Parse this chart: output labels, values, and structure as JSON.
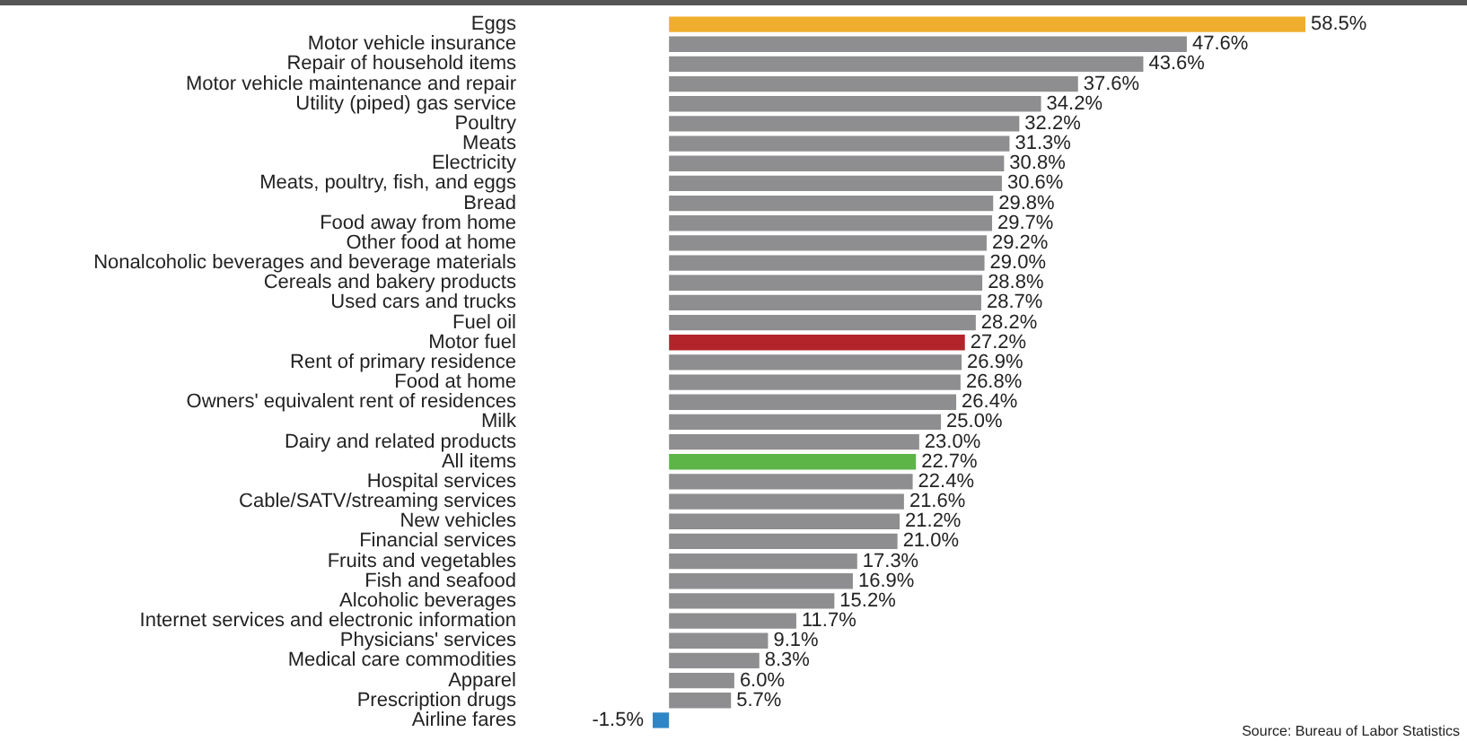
{
  "chart_data": {
    "type": "bar",
    "orientation": "horizontal",
    "categories": [
      "Eggs",
      "Motor vehicle insurance",
      "Repair of household items",
      "Motor vehicle maintenance and repair",
      "Utility (piped) gas service",
      "Poultry",
      "Meats",
      "Electricity",
      "Meats, poultry, fish, and eggs",
      "Bread",
      "Food away from home",
      "Other food at home",
      "Nonalcoholic beverages and beverage materials",
      "Cereals and bakery products",
      "Used cars and trucks",
      "Fuel oil",
      "Motor fuel",
      "Rent of primary residence",
      "Food at home",
      "Owners' equivalent rent of residences",
      "Milk",
      "Dairy and related products",
      "All items",
      "Hospital services",
      "Cable/SATV/streaming services",
      "New vehicles",
      "Financial services",
      "Fruits and vegetables",
      "Fish and seafood",
      "Alcoholic beverages",
      "Internet services and electronic information",
      "Physicians' services",
      "Medical care commodities",
      "Apparel",
      "Prescription drugs",
      "Airline fares"
    ],
    "values": [
      58.5,
      47.6,
      43.6,
      37.6,
      34.2,
      32.2,
      31.3,
      30.8,
      30.6,
      29.8,
      29.7,
      29.2,
      29.0,
      28.8,
      28.7,
      28.2,
      27.2,
      26.9,
      26.8,
      26.4,
      25.0,
      23.0,
      22.7,
      22.4,
      21.6,
      21.2,
      21.0,
      17.3,
      16.9,
      15.2,
      11.7,
      9.1,
      8.3,
      6.0,
      5.7,
      -1.5
    ],
    "value_labels": [
      "58.5%",
      "47.6%",
      "43.6%",
      "37.6%",
      "34.2%",
      "32.2%",
      "31.3%",
      "30.8%",
      "30.6%",
      "29.8%",
      "29.7%",
      "29.2%",
      "29.0%",
      "28.8%",
      "28.7%",
      "28.2%",
      "27.2%",
      "26.9%",
      "26.8%",
      "26.4%",
      "25.0%",
      "23.0%",
      "22.7%",
      "22.4%",
      "21.6%",
      "21.2%",
      "21.0%",
      "17.3%",
      "16.9%",
      "15.2%",
      "11.7%",
      "9.1%",
      "8.3%",
      "6.0%",
      "5.7%",
      "-1.5%"
    ],
    "colors": [
      "#efae2e",
      "#8e8e90",
      "#8e8e90",
      "#8e8e90",
      "#8e8e90",
      "#8e8e90",
      "#8e8e90",
      "#8e8e90",
      "#8e8e90",
      "#8e8e90",
      "#8e8e90",
      "#8e8e90",
      "#8e8e90",
      "#8e8e90",
      "#8e8e90",
      "#8e8e90",
      "#b3242a",
      "#8e8e90",
      "#8e8e90",
      "#8e8e90",
      "#8e8e90",
      "#8e8e90",
      "#5db548",
      "#8e8e90",
      "#8e8e90",
      "#8e8e90",
      "#8e8e90",
      "#8e8e90",
      "#8e8e90",
      "#8e8e90",
      "#8e8e90",
      "#8e8e90",
      "#8e8e90",
      "#8e8e90",
      "#8e8e90",
      "#2f86c6"
    ],
    "annotations": [
      "Source: Bureau of Labor Statistics"
    ],
    "legend": false
  }
}
